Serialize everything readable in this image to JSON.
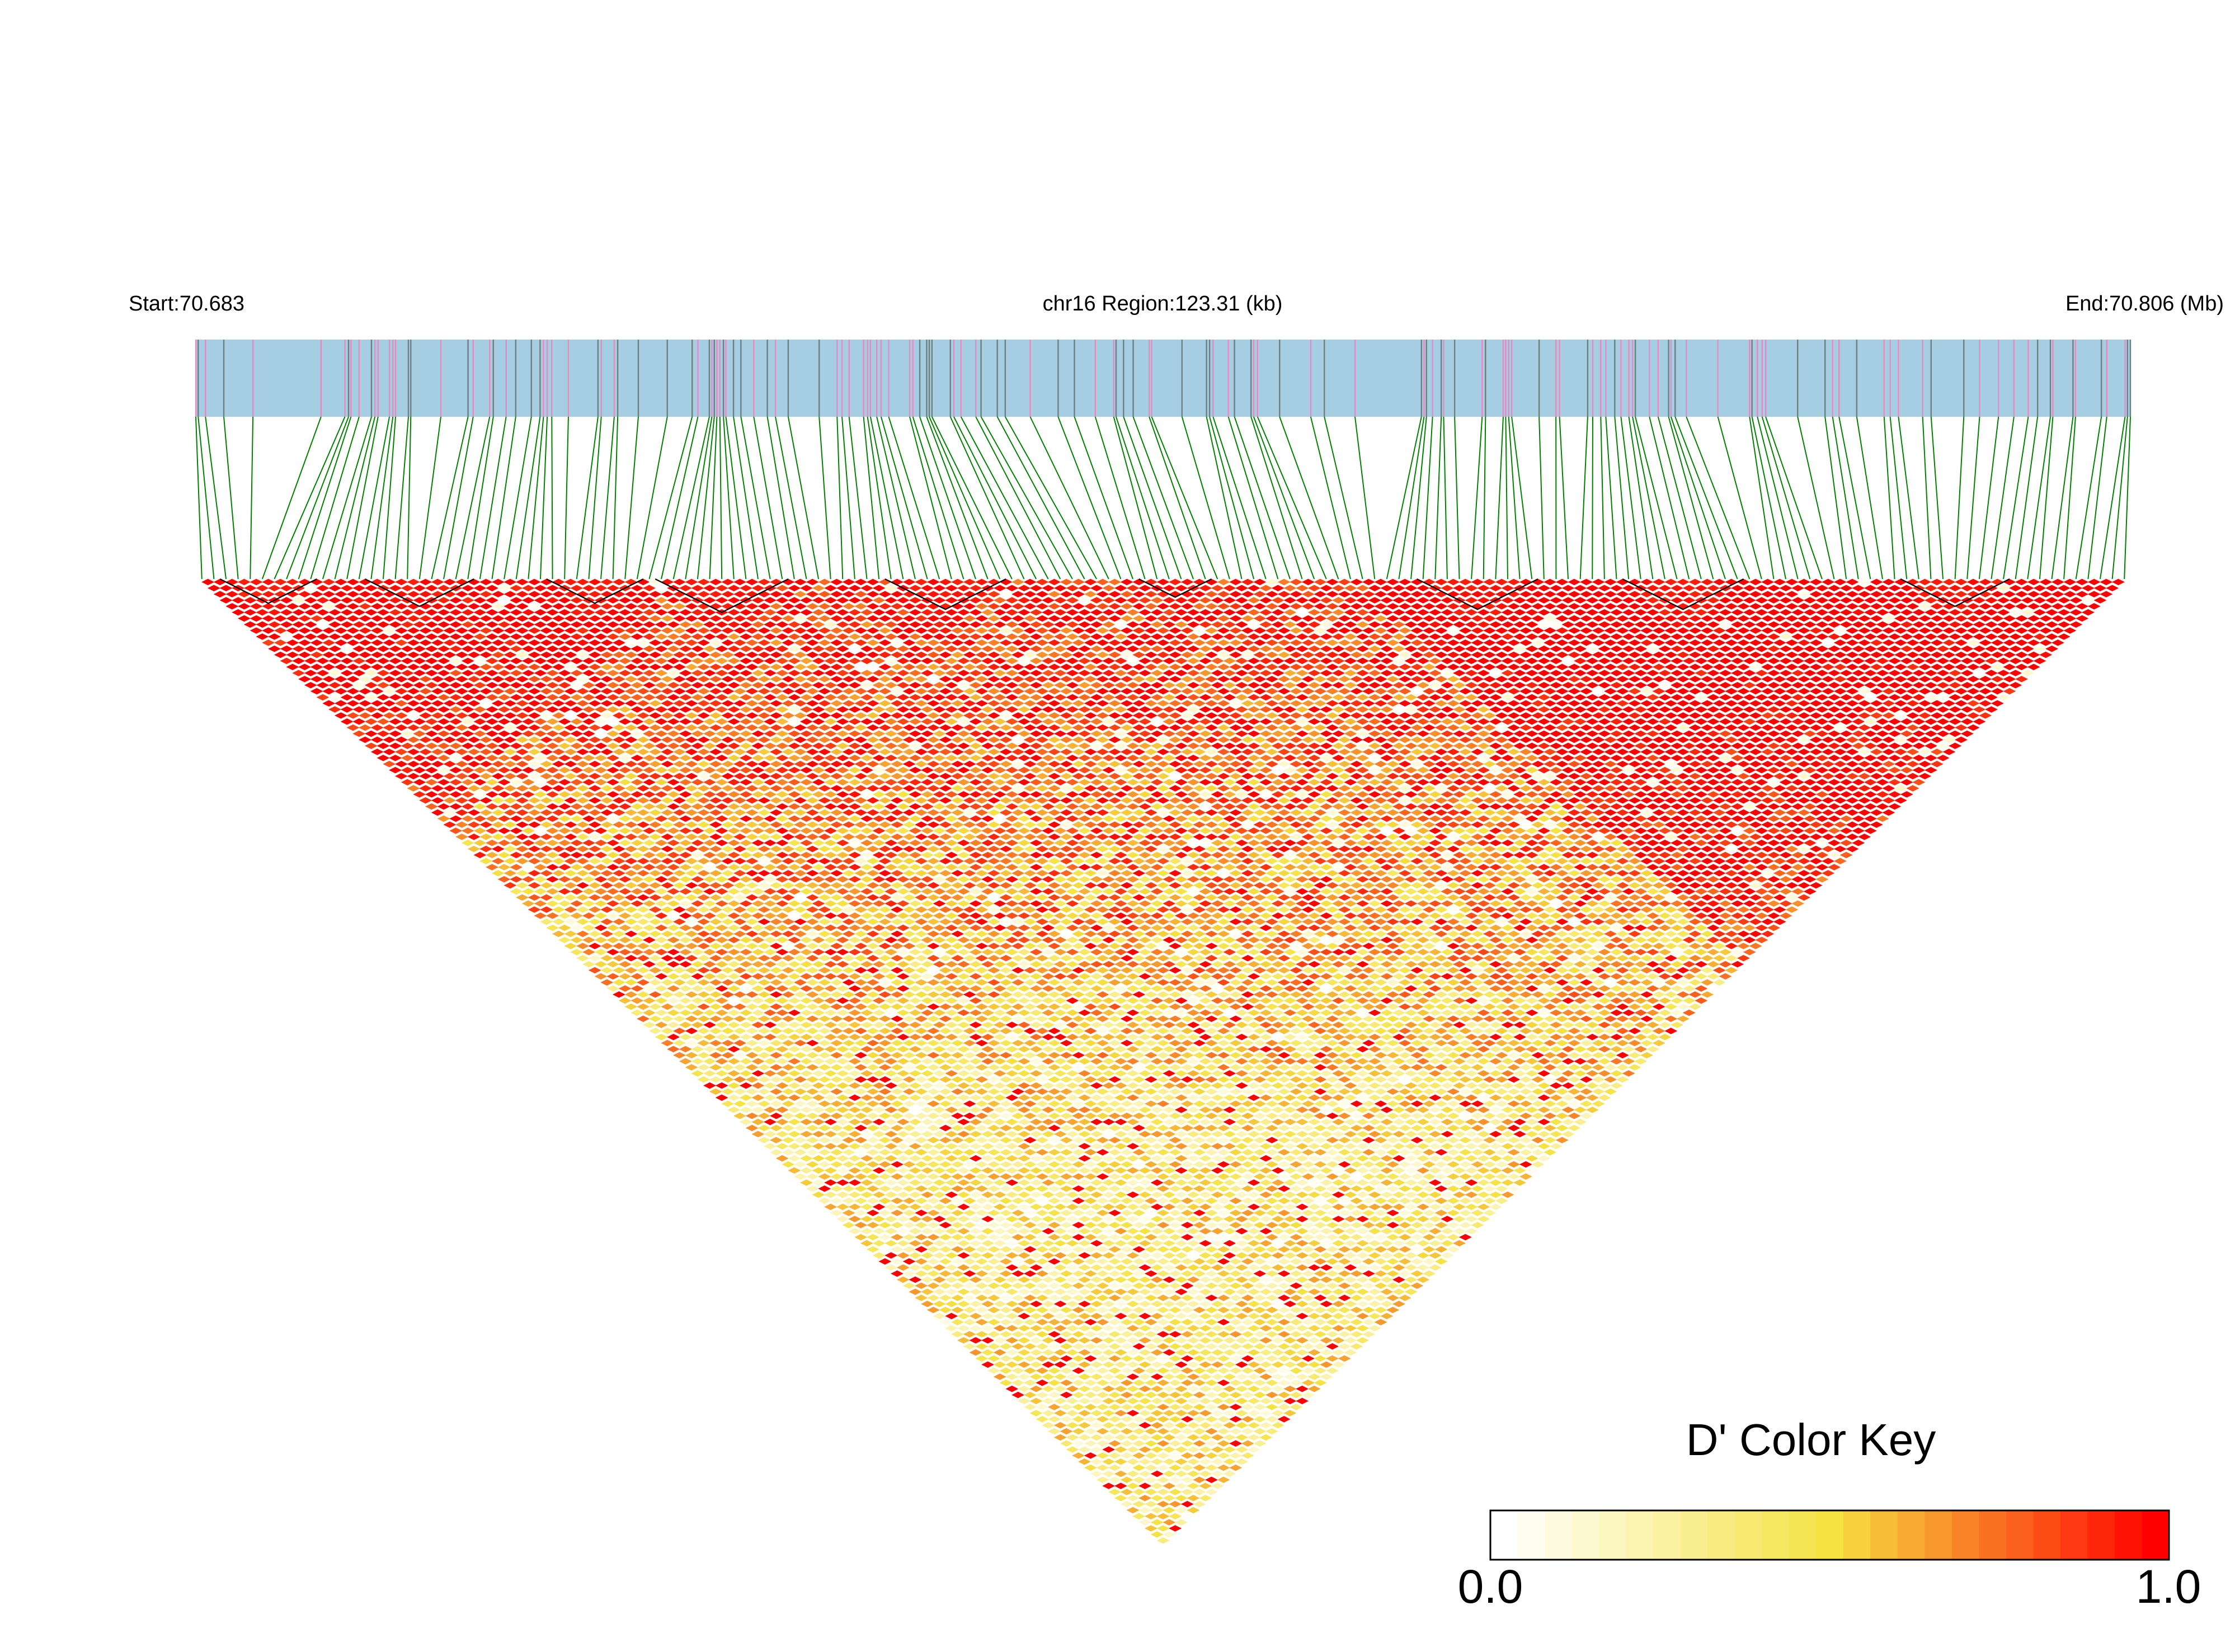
{
  "chart_data": {
    "type": "heatmap",
    "variant": "ld-triangle",
    "title": "chr16 Region:123.31 (kb)",
    "start_label": "Start:70.683",
    "end_label": "End:70.806 (Mb)",
    "chromosome": "chr16",
    "region_start_mb": 70.683,
    "region_end_mb": 70.806,
    "region_length_kb": 123.31,
    "snp_count": 160,
    "value_range": [
      0.0,
      1.0
    ],
    "block_ranges": [
      [
        2,
        9
      ],
      [
        14,
        22
      ],
      [
        29,
        36
      ],
      [
        38,
        48
      ],
      [
        57,
        66
      ],
      [
        78,
        83
      ],
      [
        101,
        110
      ],
      [
        118,
        127
      ],
      [
        141,
        149
      ]
    ],
    "colors": {
      "track_background": "#a6cee3",
      "snp_marker_pink": "#e78ac3",
      "snp_marker_gray": "#6e7f80",
      "connector_line": "#008000",
      "block_outline": "#000000",
      "scale_low": "#ffffff",
      "scale_mid": "#f5e342",
      "scale_high": "#ff0000"
    },
    "color_key": {
      "title": "D' Color Key",
      "min_label": "0.0",
      "max_label": "1.0",
      "steps": 25
    }
  }
}
